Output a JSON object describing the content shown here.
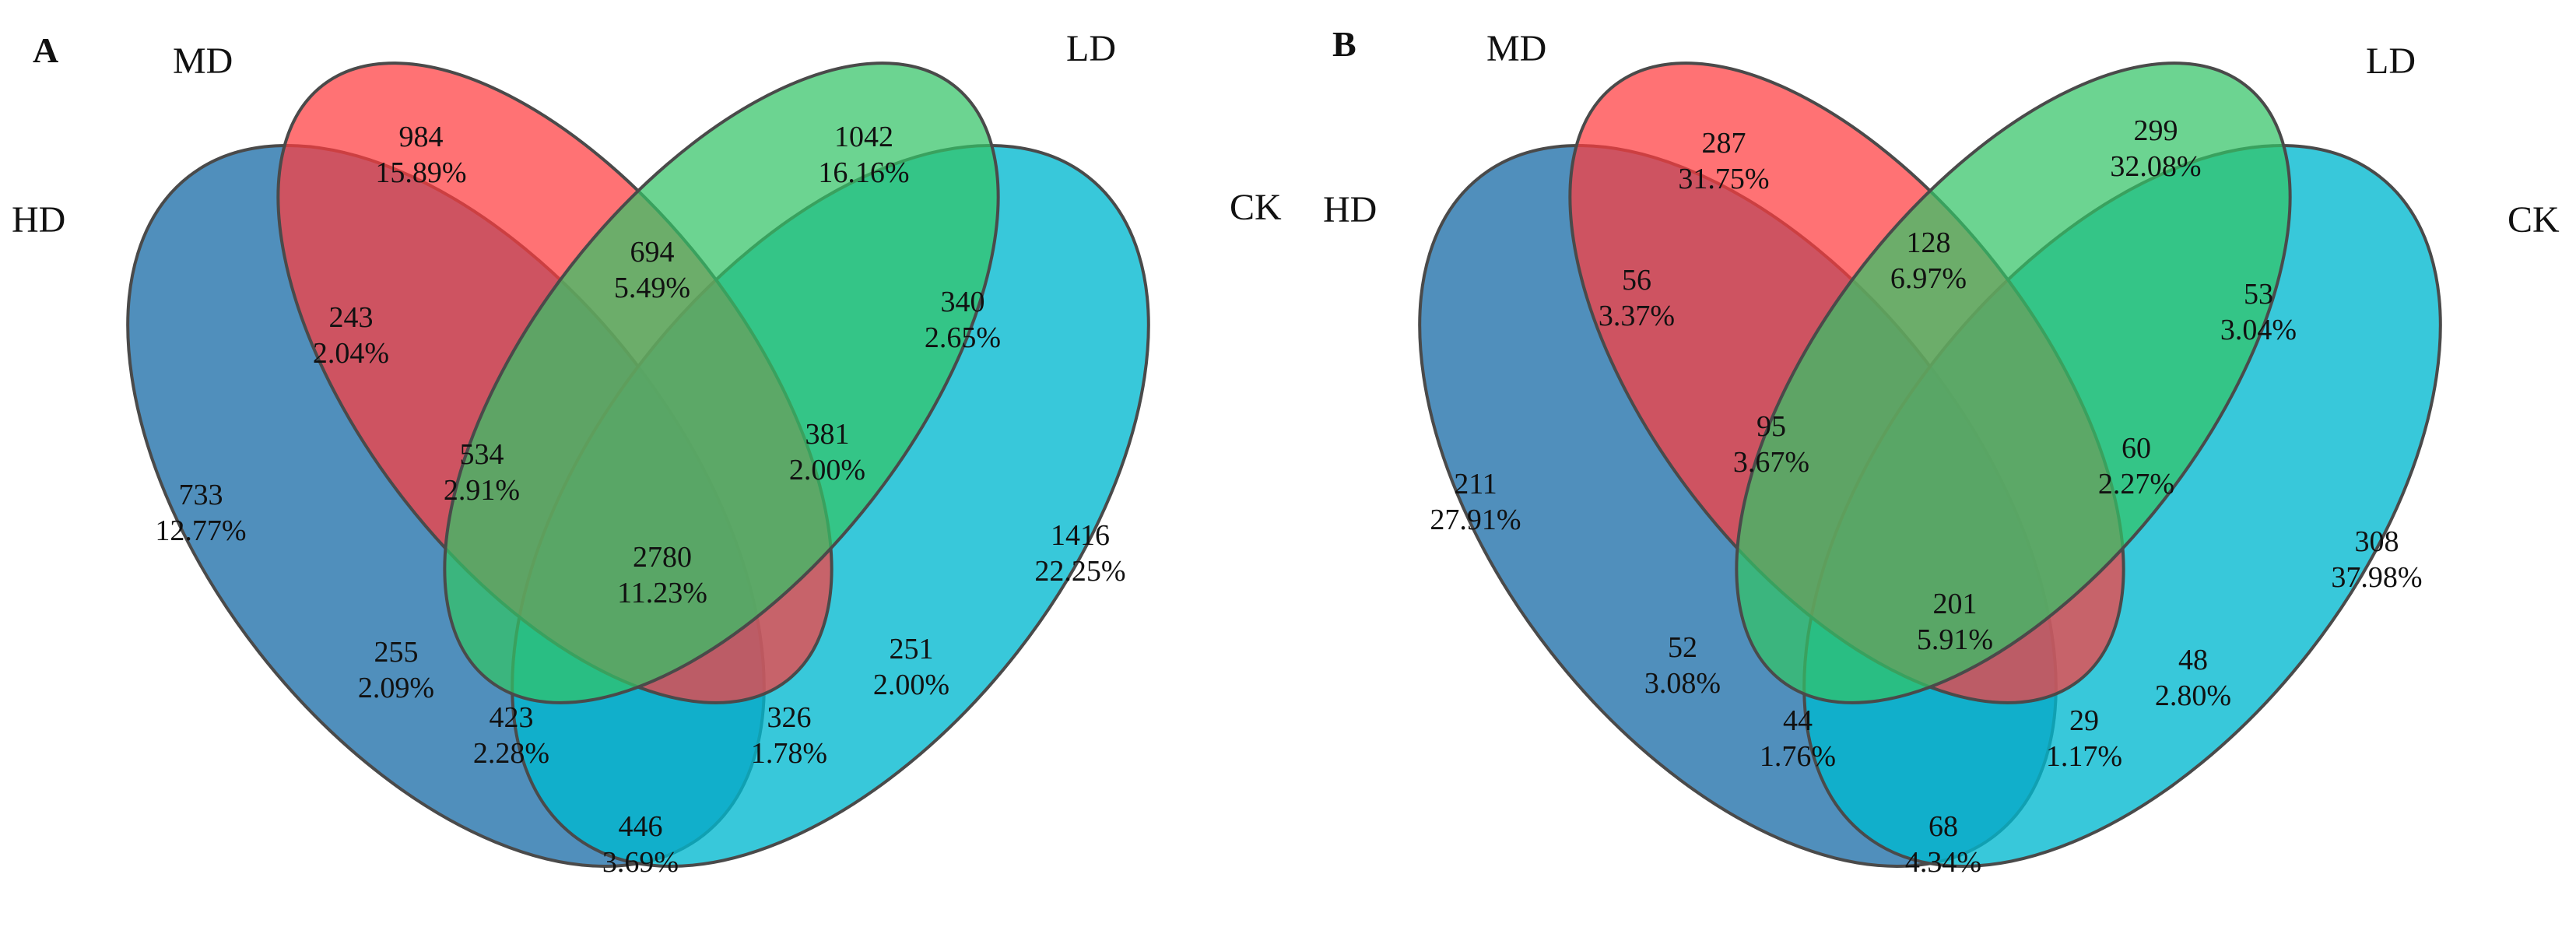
{
  "figure": {
    "panels": [
      {
        "label": "A",
        "set_labels": {
          "HD": "HD",
          "MD": "MD",
          "LD": "LD",
          "CK": "CK"
        },
        "regions": {
          "md_only": {
            "count": "984",
            "pct": "15.89%"
          },
          "ld_only": {
            "count": "1042",
            "pct": "16.16%"
          },
          "md_ld": {
            "count": "694",
            "pct": "5.49%"
          },
          "hd_md": {
            "count": "243",
            "pct": "2.04%"
          },
          "ld_ck": {
            "count": "340",
            "pct": "2.65%"
          },
          "hd_md_ld": {
            "count": "534",
            "pct": "2.91%"
          },
          "md_ld_ck": {
            "count": "381",
            "pct": "2.00%"
          },
          "hd_only": {
            "count": "733",
            "pct": "12.77%"
          },
          "ck_only": {
            "count": "1416",
            "pct": "22.25%"
          },
          "all": {
            "count": "2780",
            "pct": "11.23%"
          },
          "hd_ld": {
            "count": "255",
            "pct": "2.09%"
          },
          "md_ck": {
            "count": "251",
            "pct": "2.00%"
          },
          "hd_ld_ck": {
            "count": "423",
            "pct": "2.28%"
          },
          "hd_md_ck": {
            "count": "326",
            "pct": "1.78%"
          },
          "hd_ck": {
            "count": "446",
            "pct": "3.69%"
          }
        }
      },
      {
        "label": "B",
        "set_labels": {
          "HD": "HD",
          "MD": "MD",
          "LD": "LD",
          "CK": "CK"
        },
        "regions": {
          "md_only": {
            "count": "287",
            "pct": "31.75%"
          },
          "ld_only": {
            "count": "299",
            "pct": "32.08%"
          },
          "md_ld": {
            "count": "128",
            "pct": "6.97%"
          },
          "hd_md": {
            "count": "56",
            "pct": "3.37%"
          },
          "ld_ck": {
            "count": "53",
            "pct": "3.04%"
          },
          "hd_md_ld": {
            "count": "95",
            "pct": "3.67%"
          },
          "md_ld_ck": {
            "count": "60",
            "pct": "2.27%"
          },
          "hd_only": {
            "count": "211",
            "pct": "27.91%"
          },
          "ck_only": {
            "count": "308",
            "pct": "37.98%"
          },
          "all": {
            "count": "201",
            "pct": "5.91%"
          },
          "hd_ld": {
            "count": "52",
            "pct": "3.08%"
          },
          "md_ck": {
            "count": "48",
            "pct": "2.80%"
          },
          "hd_ld_ck": {
            "count": "44",
            "pct": "1.76%"
          },
          "hd_md_ck": {
            "count": "29",
            "pct": "1.17%"
          },
          "hd_ck": {
            "count": "68",
            "pct": "4.34%"
          }
        }
      }
    ],
    "colors": {
      "HD": "#2a76ad",
      "MD": "#ff3b3f",
      "LD": "#33c466",
      "CK": "#00b8d0"
    }
  }
}
